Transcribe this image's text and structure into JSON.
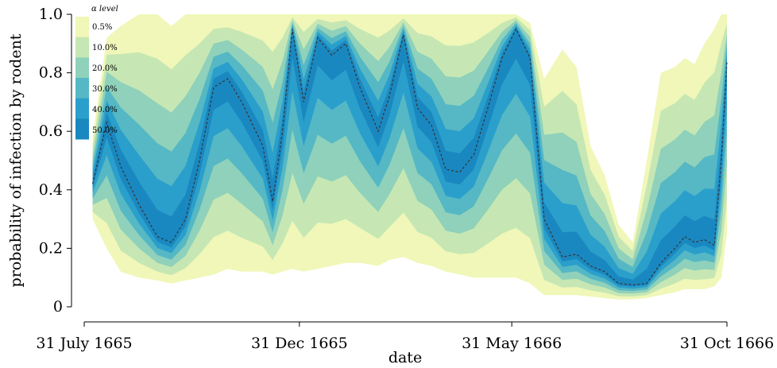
{
  "chart_data": {
    "type": "area",
    "xlabel": "date",
    "ylabel": "probability of infection by rodent",
    "xlim": [
      "1665-07-31",
      "1666-10-31"
    ],
    "ylim": [
      0,
      1.0
    ],
    "x_ticks": [
      {
        "date": "1665-07-31",
        "label": "31 July 1665"
      },
      {
        "date": "1665-12-31",
        "label": "31 Dec 1665"
      },
      {
        "date": "1666-05-31",
        "label": "31 May 1666"
      },
      {
        "date": "1666-10-31",
        "label": "31 Oct 1666"
      }
    ],
    "y_ticks": [
      {
        "value": 0,
        "label": "0"
      },
      {
        "value": 0.2,
        "label": "0.2"
      },
      {
        "value": 0.4,
        "label": "0.4"
      },
      {
        "value": 0.6,
        "label": "0.6"
      },
      {
        "value": 0.8,
        "label": "0.8"
      },
      {
        "value": 1.0,
        "label": "1.0"
      }
    ],
    "legend": {
      "title": "α level",
      "placement": "top-left",
      "entries": [
        "0.5%",
        "10.0%",
        "20.0%",
        "30.0%",
        "40.0%",
        "50.0%"
      ],
      "colors": [
        "#f0f7b8",
        "#c6e7b3",
        "#8fd1bb",
        "#55b8c4",
        "#2b9fcb",
        "#1a88c0"
      ]
    },
    "median_line": {
      "style": "dashed",
      "color": "#333333"
    },
    "series": [
      {
        "x": [
          "1665-08-06",
          "1665-08-16",
          "1665-08-26",
          "1665-09-08",
          "1665-09-21",
          "1665-10-01",
          "1665-10-11",
          "1665-10-21",
          "1665-10-31",
          "1665-11-10",
          "1665-11-20",
          "1665-11-30",
          "1665-12-05",
          "1665-12-12",
          "1665-12-19",
          "1665-12-26",
          "1666-01-03",
          "1666-01-13",
          "1666-01-23",
          "1666-02-02",
          "1666-02-12",
          "1666-02-25",
          "1666-03-05",
          "1666-03-15",
          "1666-03-25",
          "1666-04-04",
          "1666-04-14",
          "1666-04-24",
          "1666-05-04",
          "1666-05-14",
          "1666-05-24",
          "1666-06-03",
          "1666-06-13",
          "1666-06-23",
          "1666-07-06",
          "1666-07-16",
          "1666-07-26",
          "1666-08-05",
          "1666-08-15",
          "1666-08-25",
          "1666-09-04",
          "1666-09-14",
          "1666-09-24",
          "1666-10-01",
          "1666-10-08",
          "1666-10-15",
          "1666-10-22",
          "1666-10-27",
          "1666-10-31"
        ],
        "median": [
          0.42,
          0.63,
          0.48,
          0.35,
          0.24,
          0.22,
          0.3,
          0.5,
          0.75,
          0.78,
          0.7,
          0.6,
          0.55,
          0.36,
          0.6,
          0.95,
          0.7,
          0.92,
          0.86,
          0.9,
          0.75,
          0.6,
          0.72,
          0.93,
          0.68,
          0.62,
          0.47,
          0.46,
          0.52,
          0.68,
          0.85,
          0.95,
          0.85,
          0.3,
          0.17,
          0.18,
          0.14,
          0.12,
          0.08,
          0.075,
          0.08,
          0.15,
          0.2,
          0.24,
          0.22,
          0.23,
          0.21,
          0.5,
          0.84
        ],
        "upper": [
          0.58,
          0.92,
          0.96,
          1.0,
          1.0,
          0.96,
          1.0,
          1.0,
          1.0,
          1.0,
          1.0,
          1.0,
          1.0,
          1.0,
          1.0,
          1.0,
          1.0,
          1.0,
          1.0,
          1.0,
          1.0,
          1.0,
          1.0,
          1.0,
          1.0,
          1.0,
          1.0,
          1.0,
          1.0,
          1.0,
          1.0,
          1.0,
          0.97,
          0.78,
          0.88,
          0.82,
          0.55,
          0.45,
          0.28,
          0.22,
          0.5,
          0.8,
          0.82,
          0.85,
          0.83,
          0.9,
          0.95,
          1.0,
          1.0
        ],
        "lower": [
          0.3,
          0.2,
          0.12,
          0.1,
          0.09,
          0.08,
          0.09,
          0.1,
          0.11,
          0.13,
          0.12,
          0.12,
          0.12,
          0.11,
          0.12,
          0.13,
          0.12,
          0.13,
          0.14,
          0.15,
          0.15,
          0.14,
          0.16,
          0.17,
          0.15,
          0.14,
          0.12,
          0.11,
          0.1,
          0.1,
          0.1,
          0.1,
          0.08,
          0.04,
          0.04,
          0.04,
          0.035,
          0.03,
          0.025,
          0.025,
          0.03,
          0.04,
          0.05,
          0.06,
          0.06,
          0.06,
          0.07,
          0.1,
          0.25
        ]
      }
    ]
  }
}
